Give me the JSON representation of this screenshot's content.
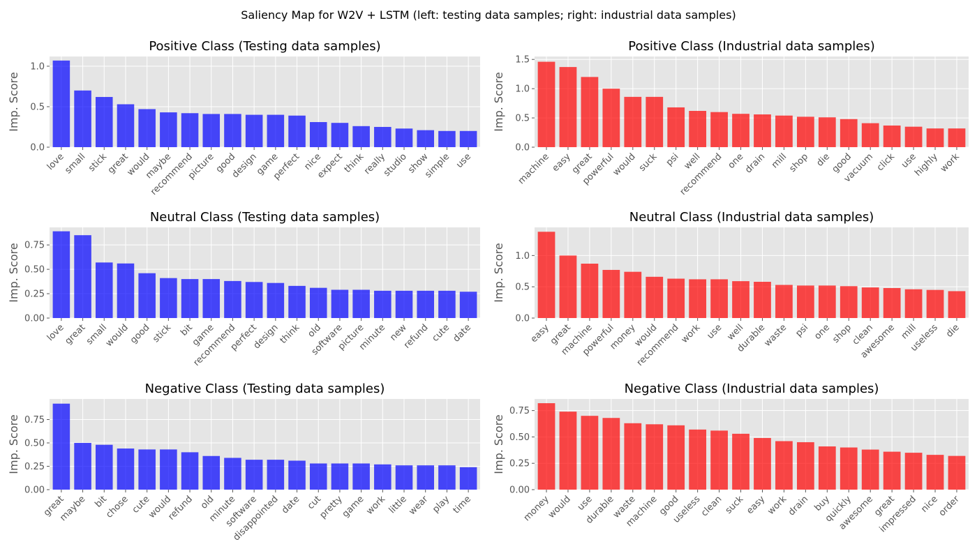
{
  "suptitle": "Saliency Map for W2V + LSTM (left: testing data samples; right: industrial data samples)",
  "style": {
    "panel_bg": "#e5e5e5",
    "grid": "#ffffff",
    "tick_text": "#555555",
    "title_text": "#000000",
    "left_bar": "#0000ff",
    "right_bar": "#ff0000",
    "bar_alpha": 0.7
  },
  "chart_data": [
    {
      "type": "bar",
      "title": "Positive Class (Testing data samples)",
      "ylabel": "Imp. Score",
      "color": "#0000ff",
      "ylim": [
        0,
        1.12
      ],
      "yticks": [
        0.0,
        0.5,
        1.0
      ],
      "ytick_labels": [
        "0.0",
        "0.5",
        "1.0"
      ],
      "categories": [
        "love",
        "small",
        "stick",
        "great",
        "would",
        "maybe",
        "recommend",
        "picture",
        "good",
        "design",
        "game",
        "perfect",
        "nice",
        "expect",
        "think",
        "really",
        "studio",
        "show",
        "simple",
        "use"
      ],
      "values": [
        1.07,
        0.7,
        0.62,
        0.53,
        0.47,
        0.43,
        0.42,
        0.41,
        0.41,
        0.4,
        0.4,
        0.39,
        0.31,
        0.3,
        0.26,
        0.25,
        0.23,
        0.21,
        0.2,
        0.2
      ]
    },
    {
      "type": "bar",
      "title": "Positive Class (Industrial data samples)",
      "ylabel": "Imp. Score",
      "color": "#ff0000",
      "ylim": [
        0,
        1.55
      ],
      "yticks": [
        0.0,
        0.5,
        1.0,
        1.5
      ],
      "ytick_labels": [
        "0.0",
        "0.5",
        "1.0",
        "1.5"
      ],
      "categories": [
        "machine",
        "easy",
        "great",
        "powerful",
        "would",
        "suck",
        "psi",
        "well",
        "recommend",
        "one",
        "drain",
        "mill",
        "shop",
        "die",
        "good",
        "vacuum",
        "click",
        "use",
        "highly",
        "work"
      ],
      "values": [
        1.46,
        1.37,
        1.2,
        1.0,
        0.86,
        0.86,
        0.68,
        0.62,
        0.6,
        0.57,
        0.56,
        0.54,
        0.52,
        0.51,
        0.48,
        0.41,
        0.37,
        0.35,
        0.32,
        0.32
      ]
    },
    {
      "type": "bar",
      "title": "Neutral Class (Testing data samples)",
      "ylabel": "Imp. Score",
      "color": "#0000ff",
      "ylim": [
        0,
        0.93
      ],
      "yticks": [
        0.0,
        0.25,
        0.5,
        0.75
      ],
      "ytick_labels": [
        "0.00",
        "0.25",
        "0.50",
        "0.75"
      ],
      "categories": [
        "love",
        "great",
        "small",
        "would",
        "good",
        "stick",
        "bit",
        "game",
        "recommend",
        "perfect",
        "design",
        "think",
        "old",
        "software",
        "picture",
        "minute",
        "new",
        "refund",
        "cute",
        "date"
      ],
      "values": [
        0.89,
        0.85,
        0.57,
        0.56,
        0.46,
        0.41,
        0.4,
        0.4,
        0.38,
        0.37,
        0.36,
        0.33,
        0.31,
        0.29,
        0.29,
        0.28,
        0.28,
        0.28,
        0.28,
        0.27
      ]
    },
    {
      "type": "bar",
      "title": "Neutral Class (Industrial data samples)",
      "ylabel": "Imp. Score",
      "color": "#ff0000",
      "ylim": [
        0,
        1.45
      ],
      "yticks": [
        0.0,
        0.5,
        1.0
      ],
      "ytick_labels": [
        "0.0",
        "0.5",
        "1.0"
      ],
      "categories": [
        "easy",
        "great",
        "machine",
        "powerful",
        "money",
        "would",
        "recommend",
        "work",
        "use",
        "well",
        "durable",
        "waste",
        "psi",
        "one",
        "shop",
        "clean",
        "awesome",
        "mill",
        "useless",
        "die"
      ],
      "values": [
        1.38,
        1.0,
        0.87,
        0.77,
        0.74,
        0.66,
        0.63,
        0.62,
        0.62,
        0.59,
        0.58,
        0.53,
        0.52,
        0.52,
        0.51,
        0.49,
        0.48,
        0.46,
        0.45,
        0.43
      ]
    },
    {
      "type": "bar",
      "title": "Negative Class (Testing data samples)",
      "ylabel": "Imp. Score",
      "color": "#0000ff",
      "ylim": [
        0,
        0.97
      ],
      "yticks": [
        0.0,
        0.25,
        0.5,
        0.75
      ],
      "ytick_labels": [
        "0.00",
        "0.25",
        "0.50",
        "0.75"
      ],
      "categories": [
        "great",
        "maybe",
        "bit",
        "chose",
        "cute",
        "would",
        "refund",
        "old",
        "minute",
        "software",
        "disappointed",
        "date",
        "cut",
        "pretty",
        "game",
        "work",
        "little",
        "wear",
        "play",
        "time"
      ],
      "values": [
        0.92,
        0.5,
        0.48,
        0.44,
        0.43,
        0.43,
        0.4,
        0.36,
        0.34,
        0.32,
        0.32,
        0.31,
        0.28,
        0.28,
        0.28,
        0.27,
        0.26,
        0.26,
        0.26,
        0.24
      ]
    },
    {
      "type": "bar",
      "title": "Negative Class (Industrial data samples)",
      "ylabel": "Imp. Score",
      "color": "#ff0000",
      "ylim": [
        0,
        0.86
      ],
      "yticks": [
        0.0,
        0.25,
        0.5,
        0.75
      ],
      "ytick_labels": [
        "0.00",
        "0.25",
        "0.50",
        "0.75"
      ],
      "categories": [
        "money",
        "would",
        "use",
        "durable",
        "waste",
        "machine",
        "good",
        "useless",
        "clean",
        "suck",
        "easy",
        "work",
        "drain",
        "buy",
        "quickly",
        "awesome",
        "great",
        "impressed",
        "nice",
        "order"
      ],
      "values": [
        0.82,
        0.74,
        0.7,
        0.68,
        0.63,
        0.62,
        0.61,
        0.57,
        0.56,
        0.53,
        0.49,
        0.46,
        0.45,
        0.41,
        0.4,
        0.38,
        0.36,
        0.35,
        0.33,
        0.32
      ]
    }
  ]
}
